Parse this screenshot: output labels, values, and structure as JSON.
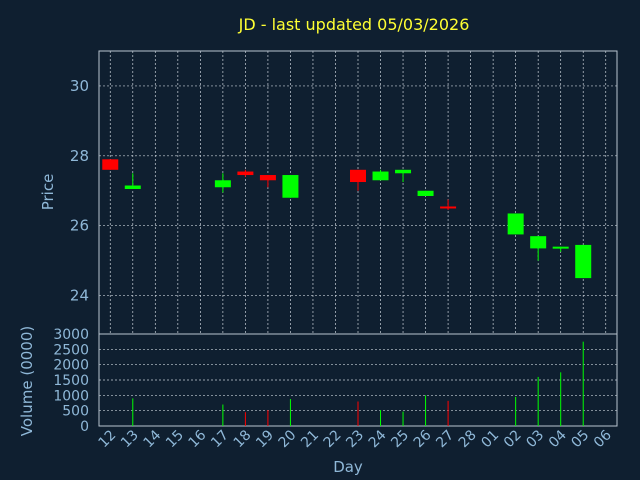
{
  "chart_data": {
    "type": "candlestick",
    "title": "JD - last updated 05/03/2026",
    "ylabel": "Price",
    "volume_label": "Volume (0000)",
    "xlabel": "Day",
    "categories": [
      "12",
      "13",
      "14",
      "15",
      "16",
      "17",
      "18",
      "19",
      "20",
      "21",
      "22",
      "23",
      "24",
      "25",
      "26",
      "27",
      "28",
      "01",
      "02",
      "03",
      "04",
      "05",
      "06"
    ],
    "price_ylim": [
      22.9,
      31
    ],
    "price_yticks": [
      24,
      26,
      28,
      30
    ],
    "volume_ylim": [
      0,
      3000
    ],
    "volume_yticks": [
      0,
      500,
      1000,
      1500,
      2000,
      2500,
      3000
    ],
    "colors": {
      "up": "#00ff00",
      "down": "#ff0000",
      "neutral": "#ff0000",
      "text": "#8fb8d8",
      "title": "#ffff33",
      "background": "#0f1f30"
    },
    "candles": [
      {
        "day": "12",
        "open": 27.9,
        "close": 27.6,
        "high": 27.9,
        "low": 27.6,
        "volume": 0
      },
      {
        "day": "13",
        "open": 27.05,
        "close": 27.15,
        "high": 27.5,
        "low": 27.05,
        "volume": 900
      },
      {
        "day": "17",
        "open": 27.1,
        "close": 27.3,
        "high": 27.5,
        "low": 26.95,
        "volume": 700
      },
      {
        "day": "18",
        "open": 27.55,
        "close": 27.45,
        "high": 27.6,
        "low": 27.4,
        "volume": 450
      },
      {
        "day": "19",
        "open": 27.45,
        "close": 27.3,
        "high": 27.45,
        "low": 27.1,
        "volume": 520
      },
      {
        "day": "20",
        "open": 26.8,
        "close": 27.45,
        "high": 27.45,
        "low": 26.8,
        "volume": 880
      },
      {
        "day": "23",
        "open": 27.6,
        "close": 27.25,
        "high": 27.6,
        "low": 27.0,
        "volume": 800
      },
      {
        "day": "24",
        "open": 27.3,
        "close": 27.55,
        "high": 27.6,
        "low": 27.3,
        "volume": 520
      },
      {
        "day": "25",
        "open": 27.5,
        "close": 27.6,
        "high": 27.6,
        "low": 27.25,
        "volume": 470
      },
      {
        "day": "26",
        "open": 26.85,
        "close": 27.0,
        "high": 27.0,
        "low": 26.85,
        "volume": 1000
      },
      {
        "day": "27",
        "open": 26.55,
        "close": 26.55,
        "high": 26.75,
        "low": 26.45,
        "volume": 820
      },
      {
        "day": "02",
        "open": 25.75,
        "close": 26.35,
        "high": 26.35,
        "low": 25.75,
        "volume": 950
      },
      {
        "day": "03",
        "open": 25.35,
        "close": 25.7,
        "high": 25.7,
        "low": 25.0,
        "volume": 1600
      },
      {
        "day": "04",
        "open": 25.35,
        "close": 25.4,
        "high": 25.4,
        "low": 25.25,
        "volume": 1750
      },
      {
        "day": "05",
        "open": 24.5,
        "close": 25.45,
        "high": 25.45,
        "low": 24.5,
        "volume": 2750
      }
    ]
  }
}
